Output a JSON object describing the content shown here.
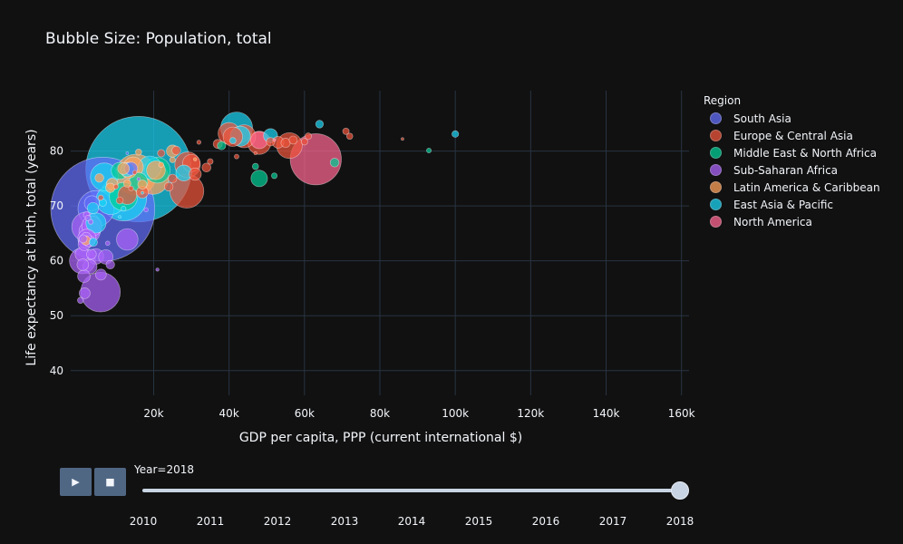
{
  "chart_data": {
    "type": "scatter",
    "title": "Bubble Size: Population, total",
    "xlabel": "GDP per capita, PPP (current international $)",
    "ylabel": "Life expectancy at birth, total (years)",
    "xlim": [
      -2000,
      162000
    ],
    "ylim": [
      35.5,
      91
    ],
    "x_ticks": [
      20000,
      40000,
      60000,
      80000,
      100000,
      120000,
      140000,
      160000
    ],
    "x_tick_labels": [
      "20k",
      "40k",
      "60k",
      "80k",
      "100k",
      "120k",
      "140k",
      "160k"
    ],
    "y_ticks": [
      40,
      50,
      60,
      70,
      80
    ],
    "y_tick_labels": [
      "40",
      "50",
      "60",
      "70",
      "80"
    ],
    "grid": true,
    "legend": {
      "title": "Region",
      "placement": "right"
    },
    "series": [
      {
        "name": "South Asia",
        "color": "#636efa",
        "points": [
          [
            6500,
            69.4,
            1353
          ],
          [
            4700,
            69.5,
            163
          ],
          [
            14000,
            76.8,
            21
          ],
          [
            13000,
            79.6,
            0.5
          ],
          [
            3600,
            70.5,
            28
          ]
        ]
      },
      {
        "name": "Europe & Central Asia",
        "color": "#ef553b",
        "points": [
          [
            28800,
            72.7,
            144
          ],
          [
            56000,
            81.0,
            83
          ],
          [
            48000,
            81.5,
            67
          ],
          [
            44000,
            82.7,
            66
          ],
          [
            40000,
            83.2,
            60
          ],
          [
            41000,
            82.6,
            47
          ],
          [
            29000,
            77.5,
            82
          ],
          [
            30000,
            77.8,
            38
          ],
          [
            31000,
            75.8,
            19
          ],
          [
            34000,
            77.0,
            10
          ],
          [
            26000,
            80.1,
            9.6
          ],
          [
            53000,
            81.6,
            17
          ],
          [
            55000,
            81.5,
            11
          ],
          [
            51000,
            81.7,
            9
          ],
          [
            57000,
            82.0,
            8.5
          ],
          [
            60000,
            81.7,
            5.6
          ],
          [
            61000,
            82.7,
            5.3
          ],
          [
            71000,
            83.6,
            5.3
          ],
          [
            86000,
            82.2,
            0.6
          ],
          [
            72000,
            82.7,
            4.9
          ],
          [
            32000,
            81.6,
            2.1
          ],
          [
            37000,
            81.3,
            10.3
          ],
          [
            22000,
            79.6,
            7.0
          ],
          [
            35000,
            78.1,
            4.1
          ],
          [
            25000,
            75.0,
            9.5
          ],
          [
            13000,
            72.0,
            44
          ],
          [
            6000,
            71.5,
            3.5
          ],
          [
            10000,
            73.5,
            2.9
          ],
          [
            17000,
            72.5,
            18
          ],
          [
            11000,
            71.0,
            6.3
          ],
          [
            14000,
            73.2,
            3.0
          ],
          [
            24000,
            73.5,
            9.5
          ],
          [
            15000,
            76.1,
            2.1
          ],
          [
            42000,
            79.0,
            2.7
          ],
          [
            47000,
            79.6,
            1.3
          ]
        ]
      },
      {
        "name": "Middle East & North Africa",
        "color": "#00cc96",
        "points": [
          [
            48000,
            75.0,
            34
          ],
          [
            52000,
            75.5,
            4.1
          ],
          [
            68000,
            77.9,
            9.6
          ],
          [
            93000,
            80.1,
            2.8
          ],
          [
            21000,
            76.5,
            82
          ],
          [
            12000,
            71.7,
            99
          ],
          [
            16000,
            74.4,
            42
          ],
          [
            11000,
            76.4,
            36
          ],
          [
            38000,
            81.0,
            8.9
          ],
          [
            47000,
            77.2,
            4.8
          ]
        ]
      },
      {
        "name": "Sub-Saharan Africa",
        "color": "#ab63fa",
        "points": [
          [
            5900,
            54.3,
            196
          ],
          [
            2200,
            66.2,
            109
          ],
          [
            1100,
            60.0,
            84
          ],
          [
            3600,
            66.3,
            51
          ],
          [
            3000,
            65.3,
            56
          ],
          [
            13000,
            63.9,
            58
          ],
          [
            4700,
            60.8,
            30
          ],
          [
            2300,
            64.1,
            42
          ],
          [
            1900,
            63.6,
            25
          ],
          [
            3100,
            58.9,
            25
          ],
          [
            1000,
            61.2,
            24
          ],
          [
            1600,
            63.0,
            19
          ],
          [
            1500,
            57.2,
            20
          ],
          [
            2800,
            63.6,
            16
          ],
          [
            1200,
            59.3,
            17
          ],
          [
            600,
            52.8,
            4.7
          ],
          [
            1700,
            54.1,
            15
          ],
          [
            6000,
            57.5,
            15
          ],
          [
            2100,
            64.3,
            12
          ],
          [
            3500,
            61.2,
            12
          ],
          [
            8500,
            59.3,
            9.3
          ],
          [
            7800,
            63.2,
            2.4
          ],
          [
            18000,
            69.3,
            2.3
          ],
          [
            21000,
            58.4,
            1.3
          ],
          [
            2600,
            67.8,
            3.9
          ],
          [
            2200,
            68.4,
            5.1
          ],
          [
            7300,
            60.7,
            26
          ],
          [
            16000,
            74.9,
            1.3
          ],
          [
            1300,
            64.0,
            8
          ],
          [
            3300,
            67.1,
            3
          ]
        ]
      },
      {
        "name": "Latin America & Caribbean",
        "color": "#ffa15a",
        "points": [
          [
            15300,
            75.7,
            209
          ],
          [
            19800,
            75.0,
            126
          ],
          [
            20600,
            76.5,
            44
          ],
          [
            14600,
            77.1,
            50
          ],
          [
            13400,
            76.5,
            32
          ],
          [
            25000,
            80.0,
            18.7
          ],
          [
            12000,
            76.8,
            17
          ],
          [
            9000,
            74.0,
            17
          ],
          [
            22000,
            77.5,
            3.4
          ],
          [
            8500,
            73.3,
            11
          ],
          [
            17000,
            73.9,
            10.6
          ],
          [
            2000,
            63.7,
            11
          ],
          [
            5600,
            75.1,
            9.6
          ],
          [
            13000,
            74.1,
            7
          ],
          [
            31000,
            78.5,
            1.4
          ],
          [
            25000,
            78.4,
            4.2
          ],
          [
            16000,
            79.8,
            5
          ]
        ]
      },
      {
        "name": "East Asia & Pacific",
        "color": "#19d3f3",
        "points": [
          [
            16000,
            76.7,
            1393
          ],
          [
            12000,
            71.5,
            268
          ],
          [
            8600,
            71.1,
            107
          ],
          [
            6900,
            75.3,
            96
          ],
          [
            42000,
            84.2,
            127
          ],
          [
            19000,
            77.0,
            66
          ],
          [
            43000,
            82.7,
            51
          ],
          [
            28000,
            76.0,
            32
          ],
          [
            4700,
            66.9,
            51
          ],
          [
            51000,
            82.8,
            25
          ],
          [
            41000,
            81.9,
            5.0
          ],
          [
            64000,
            84.9,
            7.5
          ],
          [
            100000,
            83.1,
            5.6
          ],
          [
            3900,
            69.6,
            16
          ],
          [
            13000,
            76.6,
            24
          ],
          [
            4000,
            63.4,
            8.6
          ],
          [
            12000,
            69.5,
            3.2
          ],
          [
            6500,
            70.6,
            7
          ],
          [
            11000,
            68.0,
            0.9
          ],
          [
            17000,
            72.4,
            0.2
          ]
        ]
      },
      {
        "name": "North America",
        "color": "#ff6692",
        "points": [
          [
            63000,
            78.5,
            327
          ],
          [
            48000,
            82.0,
            37
          ],
          [
            52000,
            82.0,
            0.06
          ]
        ]
      }
    ],
    "slider": {
      "current_label": "Year=2018",
      "years": [
        "2010",
        "2011",
        "2012",
        "2013",
        "2014",
        "2015",
        "2016",
        "2017",
        "2018"
      ],
      "active_index": 8
    }
  },
  "controls": {
    "play_icon": "play-icon",
    "stop_icon": "stop-icon"
  }
}
